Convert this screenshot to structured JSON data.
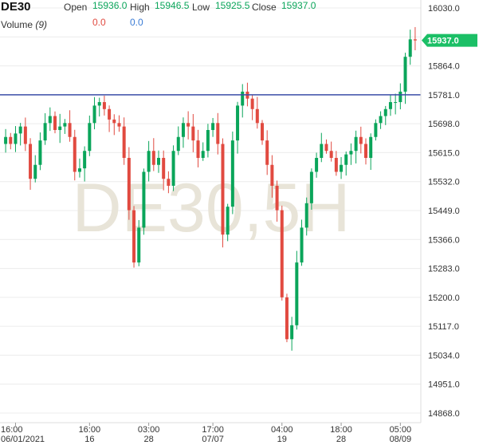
{
  "header": {
    "symbol": "DE30",
    "open_label": "Open",
    "open_value": "15936.0",
    "high_label": "High",
    "high_value": "15946.5",
    "low_label": "Low",
    "low_value": "15925.5",
    "close_label": "Close",
    "close_value": "15937.0",
    "volume_label": "Volume",
    "volume_period": "(9)",
    "volume_value_1": "0.0",
    "volume_value_2": "0.0"
  },
  "watermark": "DE30,5H",
  "colors": {
    "up": "#0aa55a",
    "down": "#e14a40",
    "hline": "#3b4ea8",
    "price_tag": "#1bbf66",
    "grid": "#ececec",
    "watermark": "#e8e4d8"
  },
  "chart_data": {
    "type": "candlestick",
    "symbol": "DE30",
    "timeframe": "5H",
    "y_ticks": [
      "16030.0",
      "15947.0",
      "15864.0",
      "15781.0",
      "15698.0",
      "15615.0",
      "15532.0",
      "15449.0",
      "15366.0",
      "15283.0",
      "15200.0",
      "15117.0",
      "15034.0",
      "14951.0",
      "14868.0"
    ],
    "ylim": [
      14868.0,
      16030.0
    ],
    "current_price": "15937.0",
    "horizontal_line": 15781.0,
    "x_ticks": [
      {
        "time": "16:00",
        "date": "06/01/2021"
      },
      {
        "time": "16:00",
        "date": "16"
      },
      {
        "time": "03:00",
        "date": "28"
      },
      {
        "time": "17:00",
        "date": "07/07"
      },
      {
        "time": "04:00",
        "date": "19"
      },
      {
        "time": "18:00",
        "date": "28"
      },
      {
        "time": "05:00",
        "date": "08/09"
      }
    ],
    "x_tick_bar_index": [
      2,
      17,
      29,
      42,
      56,
      68,
      80
    ],
    "closes": [
      15660,
      15640,
      15670,
      15690,
      15640,
      15540,
      15580,
      15650,
      15700,
      15720,
      15680,
      15690,
      15700,
      15660,
      15560,
      15570,
      15620,
      15700,
      15750,
      15760,
      15740,
      15710,
      15700,
      15690,
      15600,
      15450,
      15300,
      15400,
      15560,
      15620,
      15580,
      15600,
      15540,
      15520,
      15620,
      15660,
      15700,
      15690,
      15650,
      15600,
      15620,
      15680,
      15700,
      15640,
      15380,
      15460,
      15650,
      15750,
      15790,
      15770,
      15740,
      15700,
      15650,
      15580,
      15520,
      15450,
      15200,
      15080,
      15120,
      15300,
      15400,
      15470,
      15560,
      15600,
      15640,
      15620,
      15600,
      15560,
      15580,
      15610,
      15620,
      15660,
      15640,
      15600,
      15660,
      15700,
      15720,
      15740,
      15760,
      15760,
      15790,
      15890,
      15940,
      15937
    ]
  }
}
